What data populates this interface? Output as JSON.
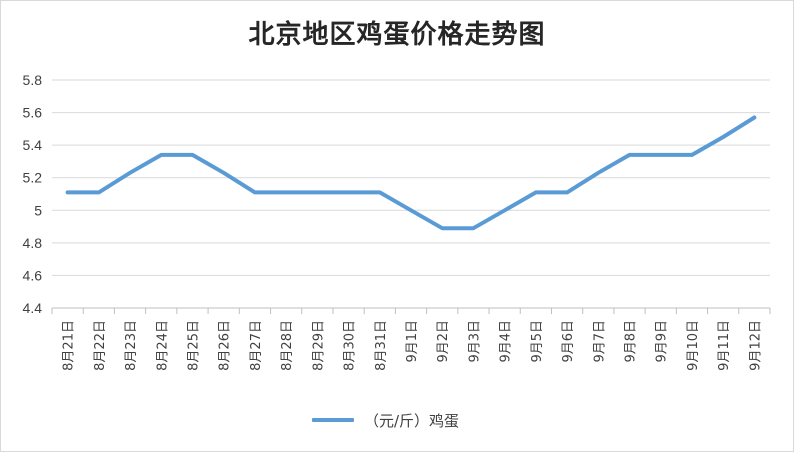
{
  "chart_data": {
    "type": "line",
    "title": "北京地区鸡蛋价格走势图",
    "xlabel": "",
    "ylabel": "",
    "ylim": [
      4.4,
      5.8
    ],
    "yticks": [
      "4.4",
      "4.6",
      "4.8",
      "5",
      "5.2",
      "5.4",
      "5.6",
      "5.8"
    ],
    "categories": [
      "8月21日",
      "8月22日",
      "8月23日",
      "8月24日",
      "8月25日",
      "8月26日",
      "8月27日",
      "8月28日",
      "8月29日",
      "8月30日",
      "8月31日",
      "9月1日",
      "9月2日",
      "9月3日",
      "9月4日",
      "9月5日",
      "9月6日",
      "9月7日",
      "9月8日",
      "9月9日",
      "9月10日",
      "9月11日",
      "9月12日"
    ],
    "series": [
      {
        "name": "（元/斤）鸡蛋",
        "color": "#5b9bd5",
        "values": [
          5.11,
          5.11,
          5.23,
          5.34,
          5.34,
          5.23,
          5.11,
          5.11,
          5.11,
          5.11,
          5.11,
          5.0,
          4.89,
          4.89,
          5.0,
          5.11,
          5.11,
          5.23,
          5.34,
          5.34,
          5.34,
          5.45,
          5.57
        ]
      }
    ],
    "grid": true,
    "legend_position": "bottom"
  }
}
